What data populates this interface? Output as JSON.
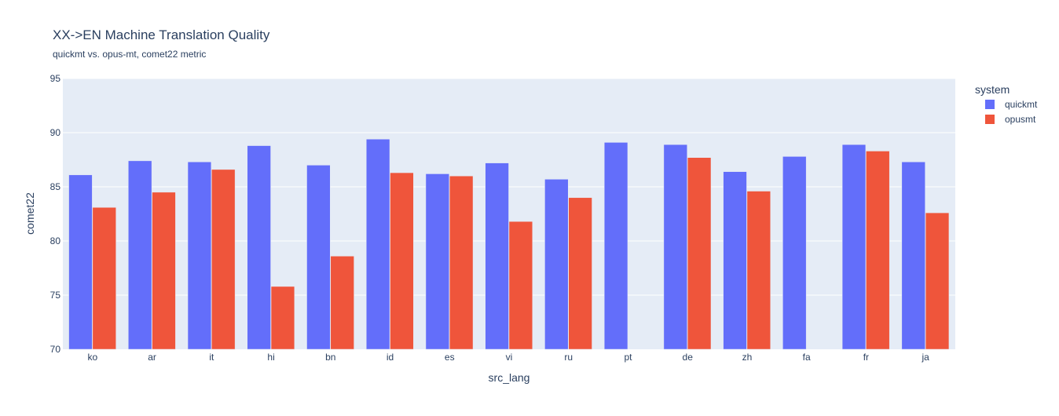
{
  "chart_data": {
    "type": "bar",
    "title": "XX->EN Machine Translation Quality",
    "subtitle": "quickmt vs. opus-mt, comet22 metric",
    "xlabel": "src_lang",
    "ylabel": "comet22",
    "ylim": [
      70,
      95
    ],
    "yticks": [
      70,
      75,
      80,
      85,
      90,
      95
    ],
    "grid": true,
    "legend_title": "system",
    "legend_position": "top-right",
    "categories": [
      "ko",
      "ar",
      "it",
      "hi",
      "bn",
      "id",
      "es",
      "vi",
      "ru",
      "pt",
      "de",
      "zh",
      "fa",
      "fr",
      "ja"
    ],
    "series": [
      {
        "name": "quickmt",
        "color": "#636efa",
        "values": [
          86.1,
          87.4,
          87.3,
          88.8,
          87.0,
          89.4,
          86.2,
          87.2,
          85.7,
          89.1,
          88.9,
          86.4,
          87.8,
          88.9,
          87.3
        ]
      },
      {
        "name": "opusmt",
        "color": "#ef553b",
        "values": [
          83.1,
          84.5,
          86.6,
          75.8,
          78.6,
          86.3,
          86.0,
          81.8,
          84.0,
          null,
          87.7,
          84.6,
          null,
          88.3,
          82.6
        ]
      }
    ]
  }
}
